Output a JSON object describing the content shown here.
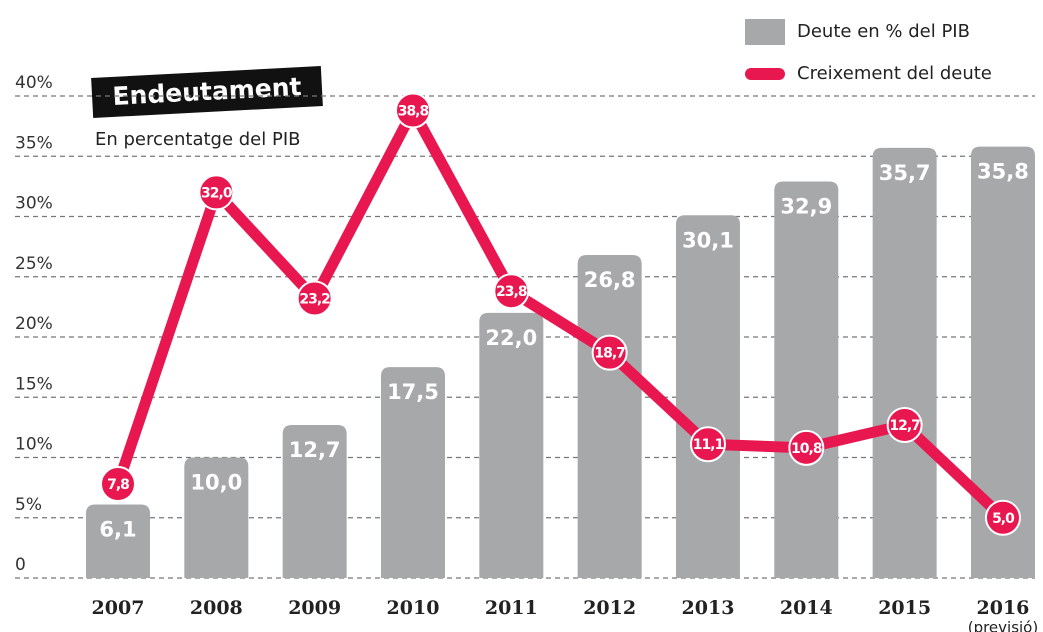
{
  "chart_data": {
    "type": "bar",
    "title": "Endeutament",
    "subtitle": "En percentatge del PIB",
    "categories": [
      "2007",
      "2008",
      "2009",
      "2010",
      "2011",
      "2012",
      "2013",
      "2014",
      "2015",
      "2016"
    ],
    "last_category_note": "(previsió)",
    "series": [
      {
        "name": "Deute en % del PIB",
        "type": "bar",
        "color": "#a7a8aa",
        "values": [
          6.1,
          10.0,
          12.7,
          17.5,
          22.0,
          26.8,
          30.1,
          32.9,
          35.7,
          35.8
        ],
        "value_labels": [
          "6,1",
          "10,0",
          "12,7",
          "17,5",
          "22,0",
          "26,8",
          "30,1",
          "32,9",
          "35,7",
          "35,8"
        ]
      },
      {
        "name": "Creixement del deute",
        "type": "line",
        "color": "#e8174f",
        "values": [
          7.8,
          32.0,
          23.2,
          38.8,
          23.8,
          18.7,
          11.1,
          10.8,
          12.7,
          5.0
        ],
        "value_labels": [
          "7,8",
          "32,0",
          "23,2",
          "38,8",
          "23,8",
          "18,7",
          "11,1",
          "10,8",
          "12,7",
          "5,0"
        ]
      }
    ],
    "ylim": [
      0,
      40
    ],
    "yticks": [
      0,
      {
        "value": 5,
        "label": "5%"
      },
      {
        "value": 10,
        "label": "10%"
      },
      {
        "value": 15,
        "label": "15%"
      },
      {
        "value": 20,
        "label": "20%"
      },
      {
        "value": 25,
        "label": "25%"
      },
      {
        "value": 30,
        "label": "30%"
      },
      {
        "value": 35,
        "label": "35%"
      },
      {
        "value": 40,
        "label": "40%"
      }
    ],
    "grid": true,
    "legend": "top-right"
  }
}
